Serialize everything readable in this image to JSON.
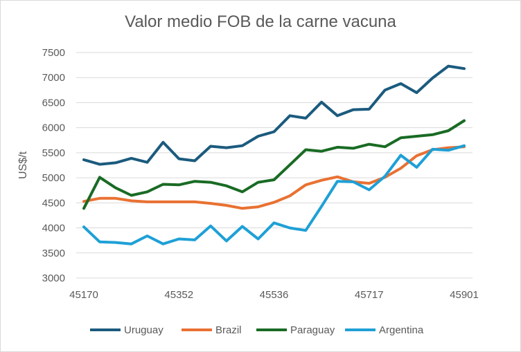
{
  "chart_data": {
    "type": "line",
    "title": "Valor medio FOB de la carne vacuna",
    "xlabel": "",
    "ylabel": "US$/t",
    "ylim": [
      3000,
      7500
    ],
    "yticks": [
      3000,
      3500,
      4000,
      4500,
      5000,
      5500,
      6000,
      6500,
      7000,
      7500
    ],
    "xtick_labels": [
      "45170",
      "45352",
      "45536",
      "45717",
      "45901"
    ],
    "xtick_indices": [
      0,
      6,
      12,
      18,
      24
    ],
    "grid": true,
    "legend_position": "bottom",
    "series": [
      {
        "name": "Uruguay",
        "color": "#1b5b7e",
        "values": [
          5360,
          5270,
          5300,
          5390,
          5310,
          5710,
          5380,
          5340,
          5630,
          5600,
          5640,
          5830,
          5920,
          6240,
          6190,
          6510,
          6240,
          6360,
          6370,
          6750,
          6880,
          6700,
          6990,
          7230,
          7180
        ]
      },
      {
        "name": "Brazil",
        "color": "#e97132",
        "values": [
          4530,
          4590,
          4590,
          4540,
          4520,
          4520,
          4520,
          4520,
          4490,
          4450,
          4390,
          4420,
          4510,
          4640,
          4860,
          4950,
          5020,
          4920,
          4890,
          5010,
          5190,
          5440,
          5560,
          5600,
          5620
        ]
      },
      {
        "name": "Paraguay",
        "color": "#196b24",
        "values": [
          4390,
          5010,
          4800,
          4650,
          4720,
          4870,
          4860,
          4930,
          4910,
          4840,
          4720,
          4910,
          4960,
          5260,
          5560,
          5530,
          5610,
          5590,
          5670,
          5620,
          5800,
          5830,
          5860,
          5940,
          6140
        ]
      },
      {
        "name": "Argentina",
        "color": "#1ea0d6",
        "values": [
          4020,
          3720,
          3710,
          3680,
          3840,
          3680,
          3780,
          3760,
          4040,
          3740,
          4030,
          3780,
          4100,
          4000,
          3950,
          4430,
          4930,
          4920,
          4760,
          5030,
          5450,
          5210,
          5570,
          5550,
          5640
        ]
      }
    ]
  }
}
